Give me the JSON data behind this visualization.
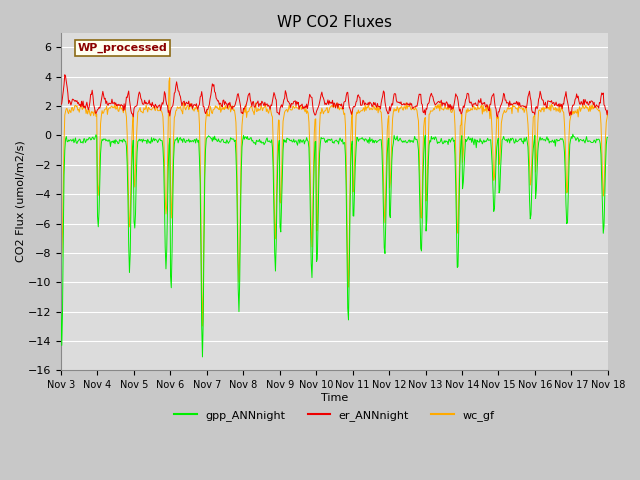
{
  "title": "WP CO2 Fluxes",
  "xlabel": "Time",
  "ylabel": "CO2 Flux (umol/m2/s)",
  "ylim": [
    -16,
    7
  ],
  "yticks": [
    -16,
    -14,
    -12,
    -10,
    -8,
    -6,
    -4,
    -2,
    0,
    2,
    4,
    6
  ],
  "bg_color": "#dcdcdc",
  "grid_color": "#ffffff",
  "fig_bg": "#c8c8c8",
  "line_green": "#00ee00",
  "line_red": "#ee0000",
  "line_orange": "#ffaa00",
  "legend_items": [
    "gpp_ANNnight",
    "er_ANNnight",
    "wc_gf"
  ],
  "watermark_text": "WP_processed",
  "watermark_color": "#8b0000",
  "watermark_bg": "#fffff0",
  "x_start": 3,
  "x_end": 18,
  "xtick_days": [
    3,
    4,
    5,
    6,
    7,
    8,
    9,
    10,
    11,
    12,
    13,
    14,
    15,
    16,
    17,
    18
  ]
}
